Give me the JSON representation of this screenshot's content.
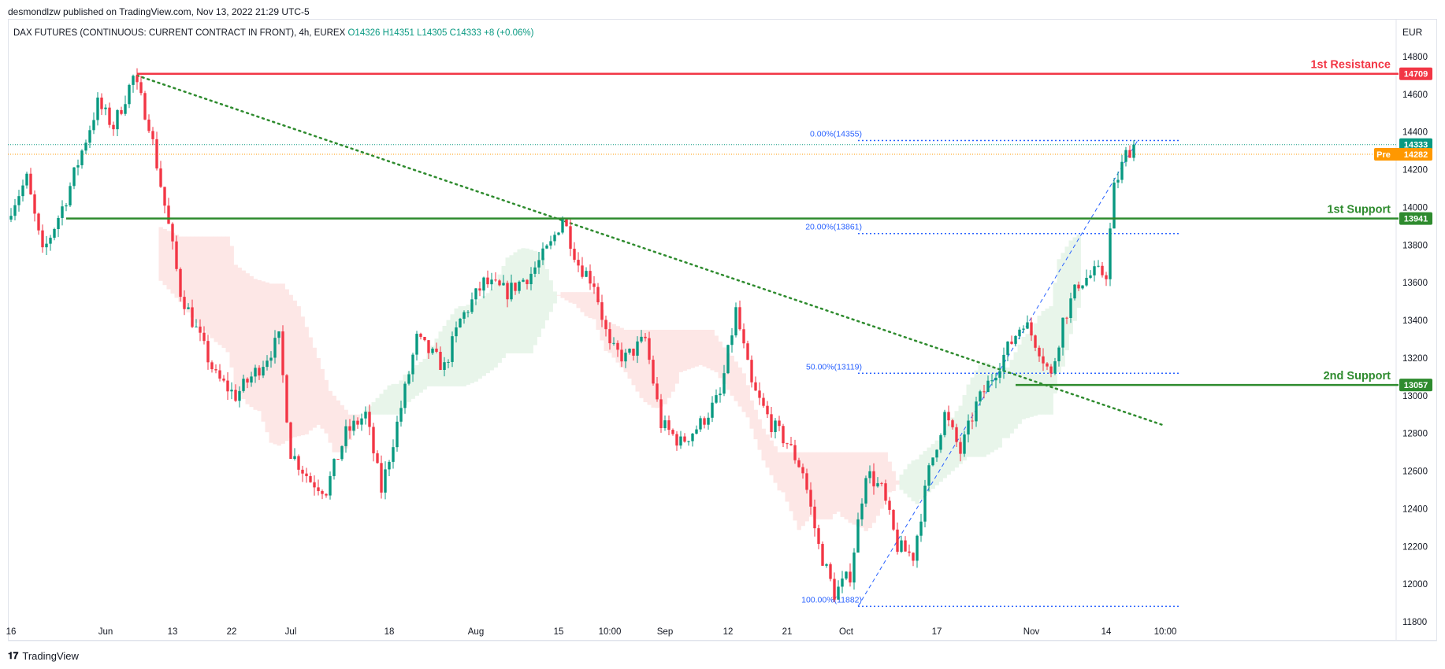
{
  "header": {
    "attribution": "desmondlzw published on TradingView.com, Nov 13, 2022 21:29 UTC-5",
    "symbol": "DAX FUTURES (CONTINUOUS: CURRENT CONTRACT IN FRONT), 4h, EUREX",
    "ohlc": "O14326 H14351 L14305 C14333 +8 (+0.06%)",
    "currency": "EUR"
  },
  "footer": {
    "brand": "TradingView"
  },
  "colors": {
    "up": "#089981",
    "down": "#f23645",
    "resistance": "#f23645",
    "support": "#2e8b2e",
    "trendline": "#2e8b2e",
    "fib": "#2962ff",
    "last_price": "#089981",
    "pre_market": "#ff9800",
    "cloud_bull": "#e8f5ea",
    "cloud_bear": "#fde7e6"
  },
  "chart_data": {
    "type": "candlestick",
    "instrument": "DAX FUTURES",
    "timeframe": "4h",
    "ylim": [
      11800,
      14850
    ],
    "y_ticks": [
      11800,
      12000,
      12200,
      12400,
      12600,
      12800,
      13000,
      13200,
      13400,
      13600,
      13800,
      14000,
      14200,
      14400,
      14600,
      14800
    ],
    "x_ticks": [
      {
        "label": "16",
        "bar": 0
      },
      {
        "label": "Jun",
        "bar": 24
      },
      {
        "label": "13",
        "bar": 41
      },
      {
        "label": "22",
        "bar": 56
      },
      {
        "label": "Jul",
        "bar": 71
      },
      {
        "label": "18",
        "bar": 96
      },
      {
        "label": "Aug",
        "bar": 118
      },
      {
        "label": "15",
        "bar": 139
      },
      {
        "label": "10:00",
        "bar": 152
      },
      {
        "label": "Sep",
        "bar": 166
      },
      {
        "label": "12",
        "bar": 182
      },
      {
        "label": "21",
        "bar": 197
      },
      {
        "label": "Oct",
        "bar": 212
      },
      {
        "label": "17",
        "bar": 235
      },
      {
        "label": "Nov",
        "bar": 259
      },
      {
        "label": "14",
        "bar": 278
      },
      {
        "label": "10:00",
        "bar": 293
      }
    ],
    "key_points": [
      {
        "bar": 0,
        "price": 14000
      },
      {
        "bar": 4,
        "price": 14150
      },
      {
        "bar": 8,
        "price": 13750
      },
      {
        "bar": 14,
        "price": 14050
      },
      {
        "bar": 18,
        "price": 14300
      },
      {
        "bar": 22,
        "price": 14550
      },
      {
        "bar": 26,
        "price": 14430
      },
      {
        "bar": 31,
        "price": 14690
      },
      {
        "bar": 35,
        "price": 14450
      },
      {
        "bar": 40,
        "price": 13900
      },
      {
        "bar": 43,
        "price": 13550
      },
      {
        "bar": 48,
        "price": 13300
      },
      {
        "bar": 52,
        "price": 13100
      },
      {
        "bar": 57,
        "price": 13000
      },
      {
        "bar": 63,
        "price": 13150
      },
      {
        "bar": 68,
        "price": 13300
      },
      {
        "bar": 71,
        "price": 12700
      },
      {
        "bar": 76,
        "price": 12550
      },
      {
        "bar": 80,
        "price": 12500
      },
      {
        "bar": 85,
        "price": 12800
      },
      {
        "bar": 90,
        "price": 12900
      },
      {
        "bar": 94,
        "price": 12500
      },
      {
        "bar": 98,
        "price": 12850
      },
      {
        "bar": 103,
        "price": 13300
      },
      {
        "bar": 110,
        "price": 13150
      },
      {
        "bar": 114,
        "price": 13400
      },
      {
        "bar": 120,
        "price": 13600
      },
      {
        "bar": 126,
        "price": 13550
      },
      {
        "bar": 132,
        "price": 13650
      },
      {
        "bar": 137,
        "price": 13800
      },
      {
        "bar": 140,
        "price": 13950
      },
      {
        "bar": 144,
        "price": 13700
      },
      {
        "bar": 148,
        "price": 13600
      },
      {
        "bar": 152,
        "price": 13250
      },
      {
        "bar": 156,
        "price": 13200
      },
      {
        "bar": 161,
        "price": 13300
      },
      {
        "bar": 165,
        "price": 12850
      },
      {
        "bar": 170,
        "price": 12750
      },
      {
        "bar": 175,
        "price": 12850
      },
      {
        "bar": 180,
        "price": 13000
      },
      {
        "bar": 184,
        "price": 13450
      },
      {
        "bar": 188,
        "price": 13050
      },
      {
        "bar": 193,
        "price": 12850
      },
      {
        "bar": 197,
        "price": 12750
      },
      {
        "bar": 201,
        "price": 12600
      },
      {
        "bar": 205,
        "price": 12200
      },
      {
        "bar": 209,
        "price": 11950
      },
      {
        "bar": 213,
        "price": 12050
      },
      {
        "bar": 217,
        "price": 12600
      },
      {
        "bar": 221,
        "price": 12500
      },
      {
        "bar": 225,
        "price": 12200
      },
      {
        "bar": 229,
        "price": 12150
      },
      {
        "bar": 233,
        "price": 12600
      },
      {
        "bar": 237,
        "price": 12900
      },
      {
        "bar": 241,
        "price": 12700
      },
      {
        "bar": 245,
        "price": 12950
      },
      {
        "bar": 249,
        "price": 13100
      },
      {
        "bar": 253,
        "price": 13250
      },
      {
        "bar": 257,
        "price": 13400
      },
      {
        "bar": 261,
        "price": 13250
      },
      {
        "bar": 264,
        "price": 13100
      },
      {
        "bar": 267,
        "price": 13400
      },
      {
        "bar": 271,
        "price": 13600
      },
      {
        "bar": 275,
        "price": 13650
      },
      {
        "bar": 278,
        "price": 13650
      },
      {
        "bar": 280,
        "price": 14100
      },
      {
        "bar": 283,
        "price": 14280
      },
      {
        "bar": 285,
        "price": 14333
      }
    ],
    "horizontal_levels": [
      {
        "name": "resistance",
        "label": "1st Resistance",
        "price": 14709,
        "price_label": "14709",
        "from_bar": 32
      },
      {
        "name": "support-1",
        "label": "1st Support",
        "price": 13941,
        "price_label": "13941",
        "from_bar": 14
      },
      {
        "name": "support-2",
        "label": "2nd Support",
        "price": 13057,
        "price_label": "13057",
        "from_bar": 255
      }
    ],
    "fib_levels": [
      {
        "label": "0.00%(14355)",
        "price": 14355
      },
      {
        "label": "20.00%(13861)",
        "price": 13861
      },
      {
        "label": "50.00%(13119)",
        "price": 13119
      },
      {
        "label": "100.00%(11882)",
        "price": 11882
      }
    ],
    "fib_range": {
      "from_bar": 215,
      "to_bar": 297,
      "label_bar": 206
    },
    "fib_diagonal": {
      "from": {
        "bar": 215,
        "price": 11882
      },
      "to": {
        "bar": 286,
        "price": 14355
      }
    },
    "trendline": {
      "from": {
        "bar": 32,
        "price": 14700
      },
      "to": {
        "bar": 293,
        "price": 12840
      }
    },
    "last_price": {
      "price": 14333,
      "label": "14333"
    },
    "pre_market": {
      "price": 14282,
      "label": "14282",
      "tag": "Pre"
    }
  }
}
